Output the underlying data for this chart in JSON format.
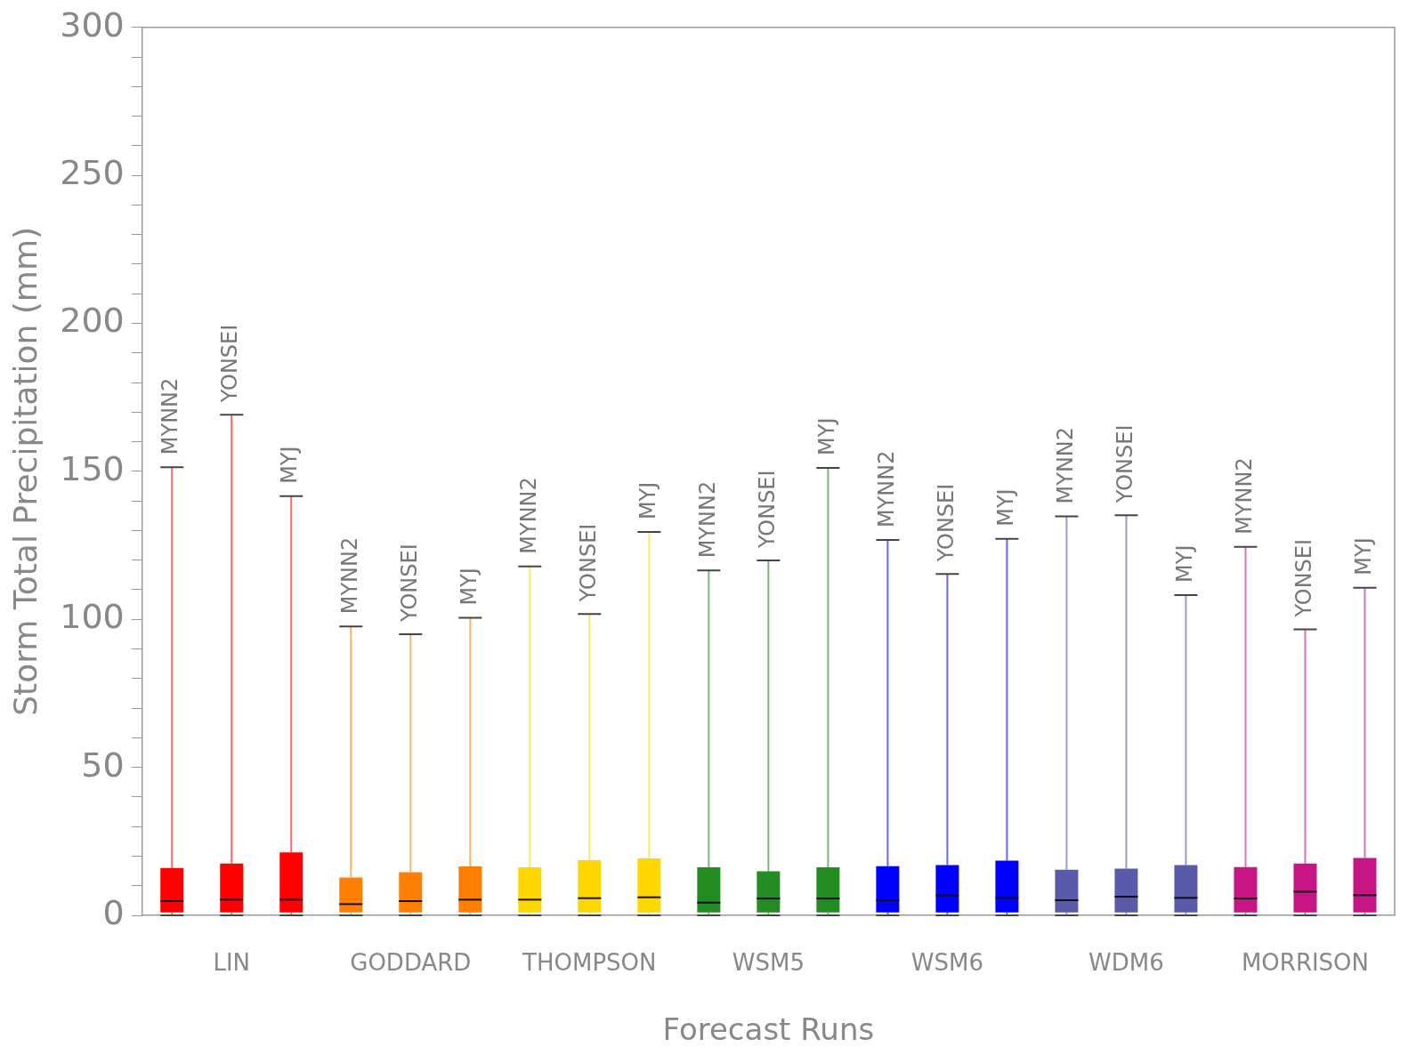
{
  "chart_data": {
    "type": "box",
    "xlabel": "Forecast Runs",
    "ylabel": "Storm Total Precipitation (mm)",
    "categories": [
      null,
      "LIN",
      null,
      null,
      "GODDARD",
      null,
      null,
      "THOMPSON",
      null,
      null,
      "WSM5",
      null,
      null,
      "WSM6",
      null,
      null,
      "WDM6",
      null,
      null,
      "MORRISON",
      null
    ],
    "colors": [
      "#ff0000",
      "#ff0000",
      "#ff0000",
      "#ff7f00",
      "#ff7f00",
      "#ff7f00",
      "#ffd700",
      "#ffd700",
      "#ffd700",
      "#228b22",
      "#228b22",
      "#228b22",
      "#0000ff",
      "#0000ff",
      "#0000ff",
      "#5a5aaa",
      "#5a5aaa",
      "#5a5aaa",
      "#c71585",
      "#c71585",
      "#c71585"
    ],
    "boxes": [
      {
        "low": 0,
        "q1": 1,
        "median": 4.8,
        "q3": 16.0,
        "high": 151.4
      },
      {
        "low": 0,
        "q1": 1,
        "median": 5.3,
        "q3": 17.5,
        "high": 169.1
      },
      {
        "low": 0,
        "q1": 1,
        "median": 5.3,
        "q3": 21.3,
        "high": 141.6
      },
      {
        "low": 0,
        "q1": 1,
        "median": 3.8,
        "q3": 12.8,
        "high": 97.6
      },
      {
        "low": 0,
        "q1": 1,
        "median": 4.8,
        "q3": 14.6,
        "high": 95.0
      },
      {
        "low": 0,
        "q1": 1,
        "median": 5.3,
        "q3": 16.5,
        "high": 100.5
      },
      {
        "low": 0,
        "q1": 1,
        "median": 5.3,
        "q3": 16.2,
        "high": 117.9
      },
      {
        "low": 0,
        "q1": 1,
        "median": 5.8,
        "q3": 18.6,
        "high": 101.8
      },
      {
        "low": 0,
        "q1": 1,
        "median": 6.1,
        "q3": 19.2,
        "high": 129.5
      },
      {
        "low": 0,
        "q1": 1,
        "median": 4.3,
        "q3": 16.2,
        "high": 116.5
      },
      {
        "low": 0,
        "q1": 1,
        "median": 5.7,
        "q3": 14.9,
        "high": 119.9
      },
      {
        "low": 0,
        "q1": 1,
        "median": 5.7,
        "q3": 16.2,
        "high": 151.2
      },
      {
        "low": 0,
        "q1": 1,
        "median": 5.1,
        "q3": 16.6,
        "high": 126.8
      },
      {
        "low": 0,
        "q1": 1,
        "median": 6.7,
        "q3": 17.0,
        "high": 115.3
      },
      {
        "low": 0,
        "q1": 1,
        "median": 5.9,
        "q3": 18.5,
        "high": 127.2
      },
      {
        "low": 0,
        "q1": 1,
        "median": 5.1,
        "q3": 15.4,
        "high": 134.8
      },
      {
        "low": 0,
        "q1": 1,
        "median": 6.3,
        "q3": 15.8,
        "high": 135.2
      },
      {
        "low": 0,
        "q1": 1,
        "median": 5.9,
        "q3": 17.0,
        "high": 108.2
      },
      {
        "low": 0,
        "q1": 1,
        "median": 5.7,
        "q3": 16.3,
        "high": 124.5
      },
      {
        "low": 0,
        "q1": 1,
        "median": 8.0,
        "q3": 17.5,
        "high": 96.6
      },
      {
        "low": 0,
        "q1": 1,
        "median": 6.8,
        "q3": 19.4,
        "high": 110.7
      }
    ],
    "ylim": [
      0,
      300
    ],
    "yticks": [
      0,
      {
        "value": 10,
        "label": null
      },
      {
        "value": 20,
        "label": null
      },
      {
        "value": 30,
        "label": null
      },
      {
        "value": 40,
        "label": null
      },
      50,
      {
        "value": 60,
        "label": null
      },
      {
        "value": 70,
        "label": null
      },
      {
        "value": 80,
        "label": null
      },
      {
        "value": 90,
        "label": null
      },
      100,
      {
        "value": 110,
        "label": null
      },
      {
        "value": 120,
        "label": null
      },
      {
        "value": 130,
        "label": null
      },
      {
        "value": 140,
        "label": null
      },
      150,
      {
        "value": 160,
        "label": null
      },
      {
        "value": 170,
        "label": null
      },
      {
        "value": 180,
        "label": null
      },
      {
        "value": 190,
        "label": null
      },
      200,
      {
        "value": 210,
        "label": null
      },
      {
        "value": 220,
        "label": null
      },
      {
        "value": 230,
        "label": null
      },
      {
        "value": 240,
        "label": null
      },
      250,
      {
        "value": 260,
        "label": null
      },
      {
        "value": 270,
        "label": null
      },
      {
        "value": 280,
        "label": null
      },
      {
        "value": 290,
        "label": null
      },
      300
    ],
    "annotations": [
      "MYNN2",
      "YONSEI",
      "MYJ",
      "MYNN2",
      "YONSEI",
      "MYJ",
      "MYNN2",
      "YONSEI",
      "MYJ",
      "MYNN2",
      "YONSEI",
      "MYJ",
      "MYNN2",
      "YONSEI",
      "MYJ",
      "MYNN2",
      "YONSEI",
      "MYJ",
      "MYNN2",
      "YONSEI",
      "MYJ"
    ]
  }
}
